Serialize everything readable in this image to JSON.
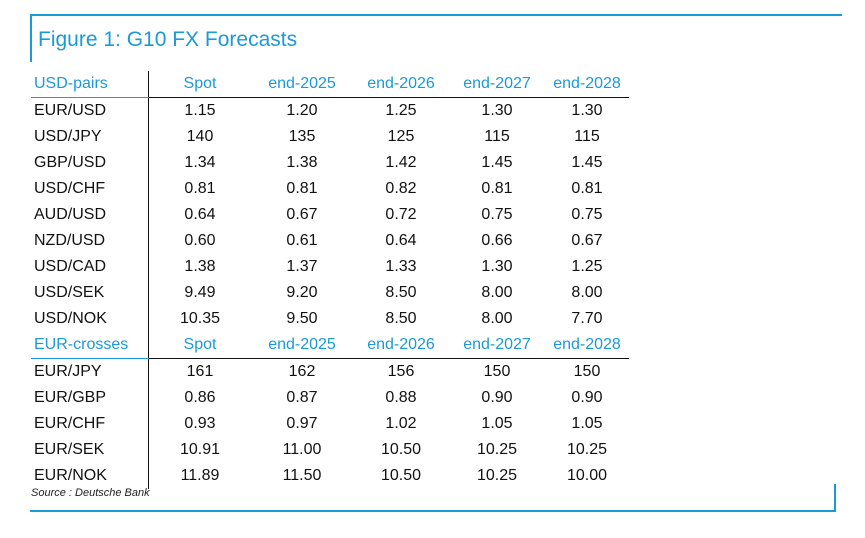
{
  "title": "Figure 1: G10 FX Forecasts",
  "source": "Source : Deutsche Bank",
  "colors": {
    "accent": "#1a9ad6",
    "text": "#111111"
  },
  "chart_data": {
    "type": "table",
    "sections": [
      {
        "header": [
          "USD-pairs",
          "Spot",
          "end-2025",
          "end-2026",
          "end-2027",
          "end-2028"
        ],
        "rows": [
          [
            "EUR/USD",
            "1.15",
            "1.20",
            "1.25",
            "1.30",
            "1.30"
          ],
          [
            "USD/JPY",
            "140",
            "135",
            "125",
            "115",
            "115"
          ],
          [
            "GBP/USD",
            "1.34",
            "1.38",
            "1.42",
            "1.45",
            "1.45"
          ],
          [
            "USD/CHF",
            "0.81",
            "0.81",
            "0.82",
            "0.81",
            "0.81"
          ],
          [
            "AUD/USD",
            "0.64",
            "0.67",
            "0.72",
            "0.75",
            "0.75"
          ],
          [
            "NZD/USD",
            "0.60",
            "0.61",
            "0.64",
            "0.66",
            "0.67"
          ],
          [
            "USD/CAD",
            "1.38",
            "1.37",
            "1.33",
            "1.30",
            "1.25"
          ],
          [
            "USD/SEK",
            "9.49",
            "9.20",
            "8.50",
            "8.00",
            "8.00"
          ],
          [
            "USD/NOK",
            "10.35",
            "9.50",
            "8.50",
            "8.00",
            "7.70"
          ]
        ]
      },
      {
        "header": [
          "EUR-crosses",
          "Spot",
          "end-2025",
          "end-2026",
          "end-2027",
          "end-2028"
        ],
        "rows": [
          [
            "EUR/JPY",
            "161",
            "162",
            "156",
            "150",
            "150"
          ],
          [
            "EUR/GBP",
            "0.86",
            "0.87",
            "0.88",
            "0.90",
            "0.90"
          ],
          [
            "EUR/CHF",
            "0.93",
            "0.97",
            "1.02",
            "1.05",
            "1.05"
          ],
          [
            "EUR/SEK",
            "10.91",
            "11.00",
            "10.50",
            "10.25",
            "10.25"
          ],
          [
            "EUR/NOK",
            "11.89",
            "11.50",
            "10.50",
            "10.25",
            "10.00"
          ]
        ]
      }
    ]
  }
}
